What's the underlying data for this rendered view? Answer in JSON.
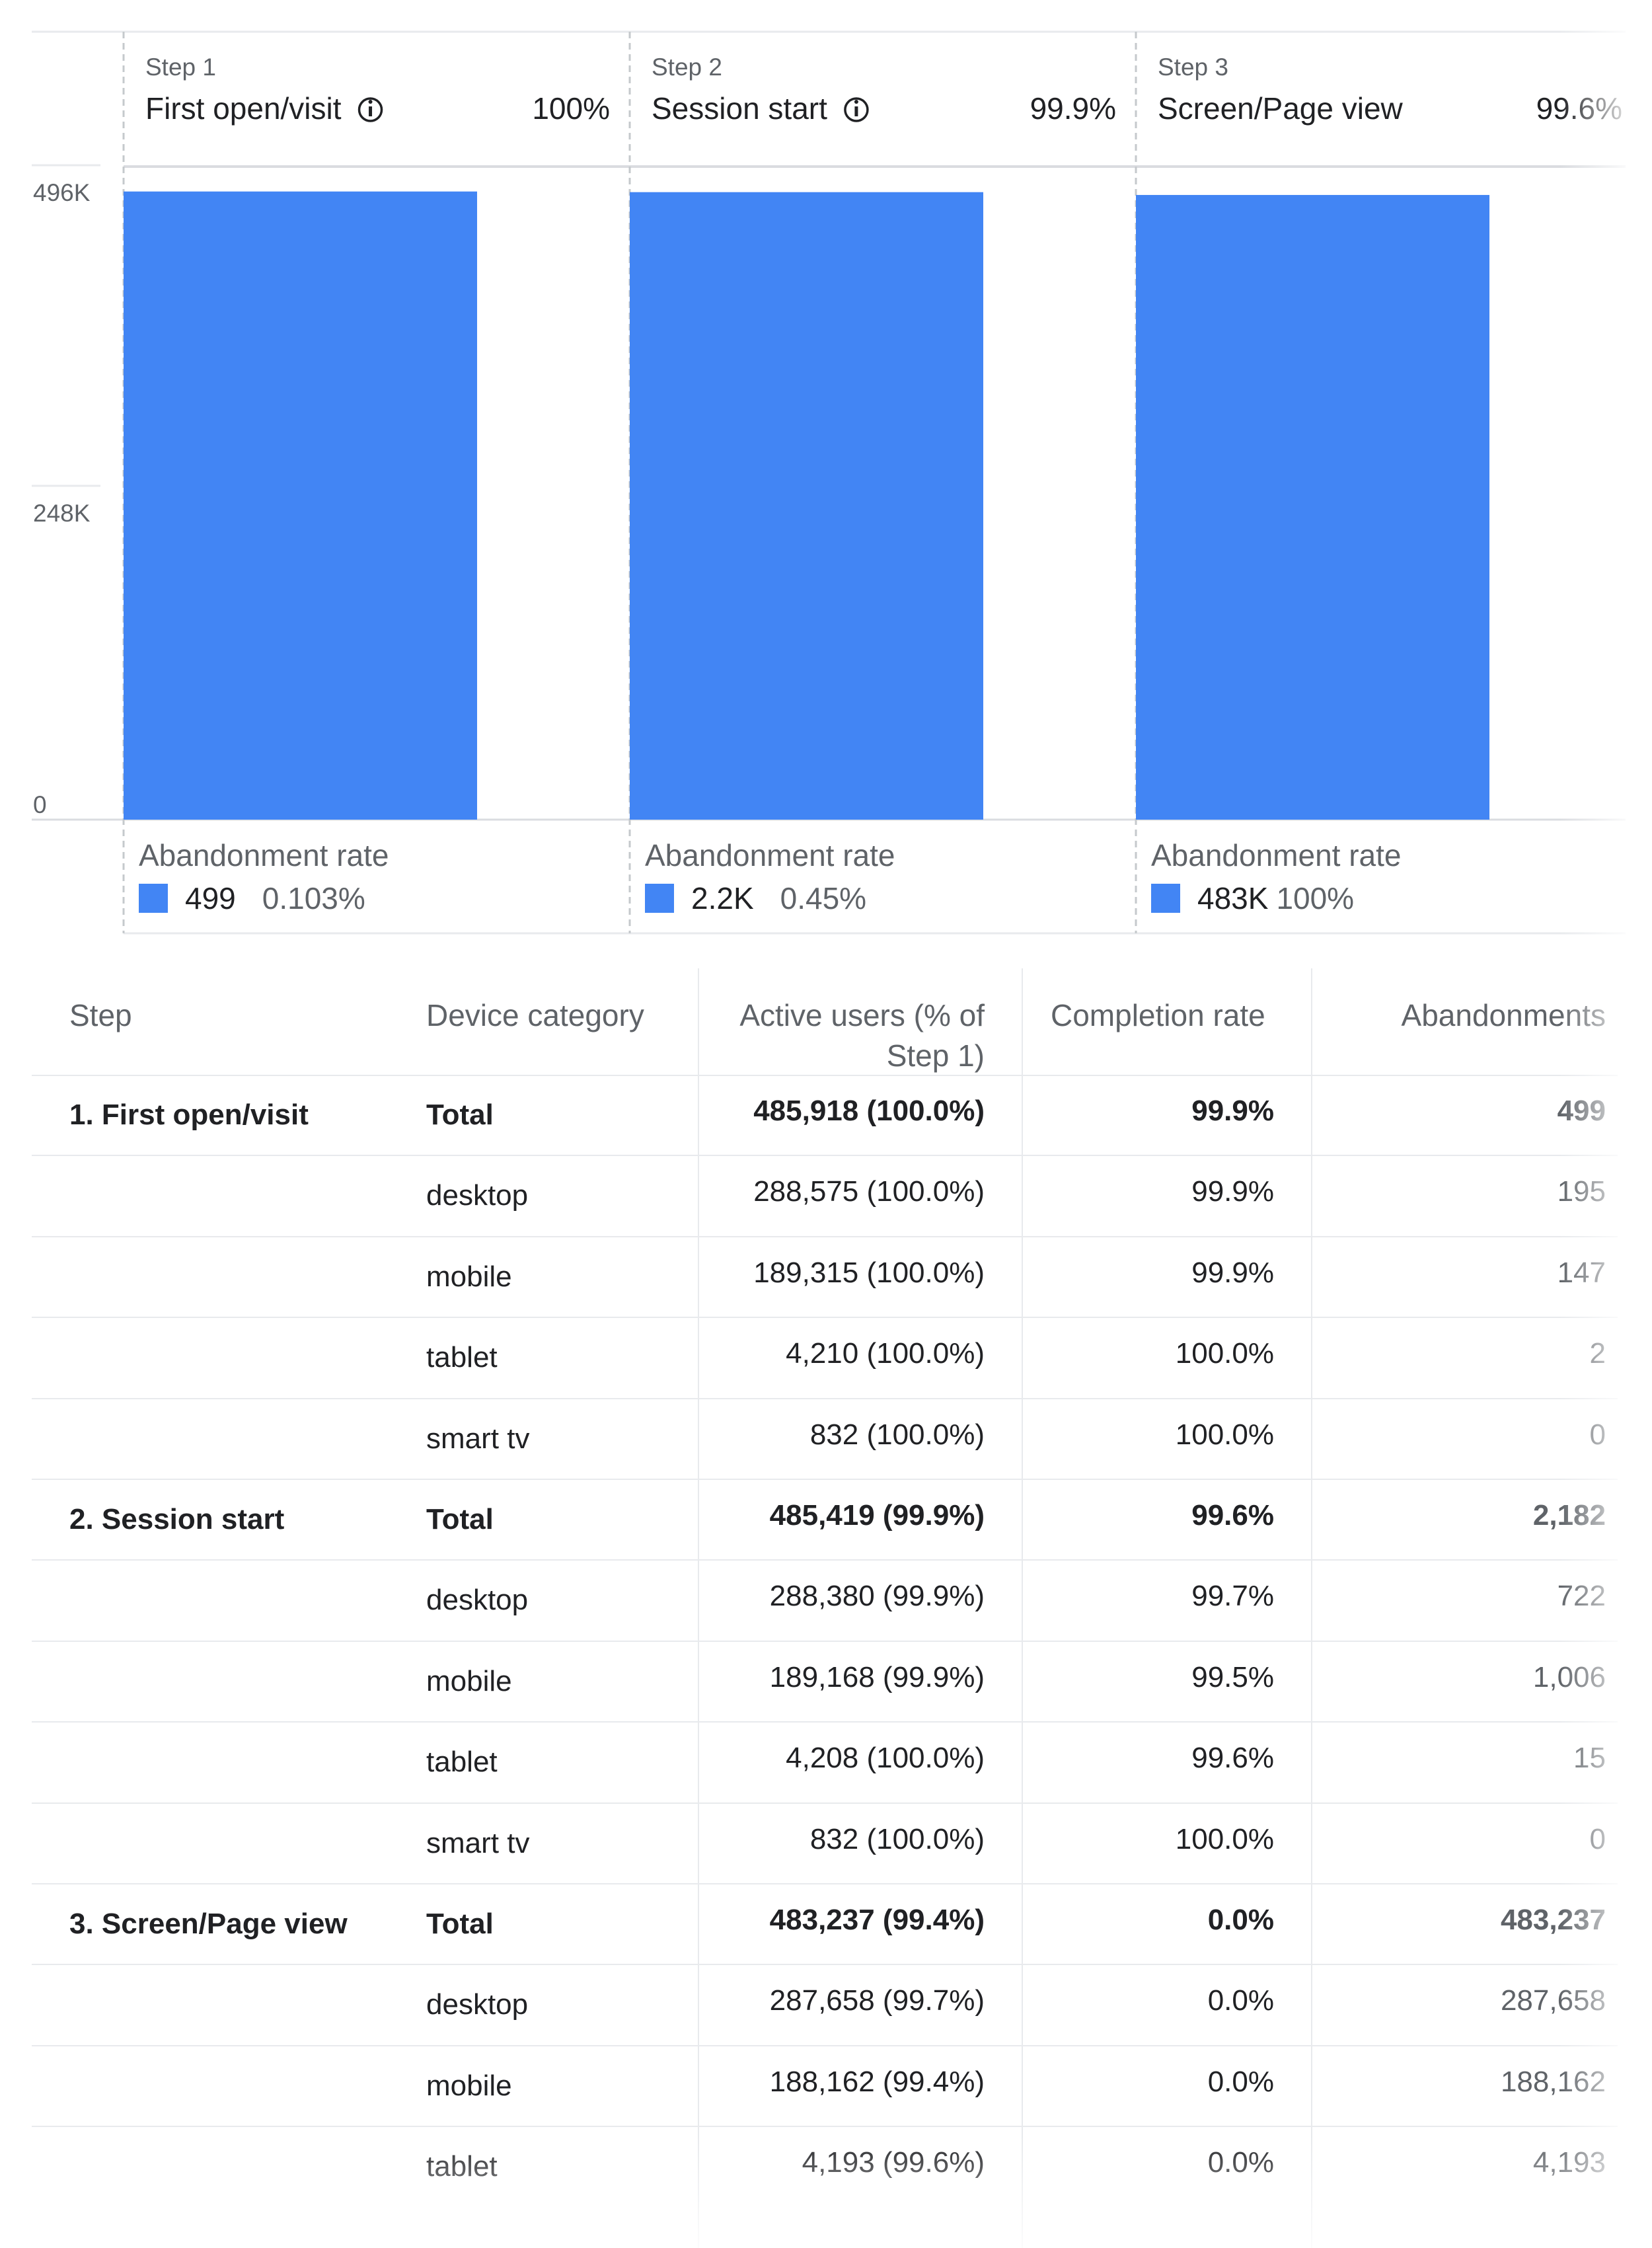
{
  "funnel": {
    "steps": [
      {
        "step_label": "Step 1",
        "name": "First open/visit",
        "has_info": true,
        "pct": "100%",
        "abandonment_title": "Abandonment rate",
        "abandonment_count": "499",
        "abandonment_rate": "0.103%"
      },
      {
        "step_label": "Step 2",
        "name": "Session start",
        "has_info": true,
        "pct": "99.9%",
        "abandonment_title": "Abandonment rate",
        "abandonment_count": "2.2K",
        "abandonment_rate": "0.45%"
      },
      {
        "step_label": "Step 3",
        "name": "Screen/Page view",
        "has_info": false,
        "pct": "99.6%",
        "abandonment_title": "Abandonment rate",
        "abandonment_count": "483K",
        "abandonment_rate": "100%"
      }
    ],
    "info_icon": "info-circle-icon",
    "bar_color": "#4285f4"
  },
  "chart_data": {
    "type": "bar",
    "categories": [
      "First open/visit",
      "Session start",
      "Screen/Page view"
    ],
    "values": [
      485918,
      485419,
      483237
    ],
    "y_ticks": [
      "0",
      "248K",
      "496K"
    ],
    "ylim": [
      0,
      496000
    ],
    "grid": true
  },
  "table": {
    "headers": {
      "step": "Step",
      "device": "Device category",
      "active_users_line1": "Active users (% of",
      "active_users_line2": "Step 1)",
      "completion": "Completion rate",
      "abandonments": "Abandonments"
    },
    "rows": [
      {
        "step": "1. First open/visit",
        "device": "Total",
        "active": "485,918 (100.0%)",
        "completion": "99.9%",
        "abandon": "499",
        "total": true
      },
      {
        "step": "",
        "device": "desktop",
        "active": "288,575 (100.0%)",
        "completion": "99.9%",
        "abandon": "195",
        "total": false
      },
      {
        "step": "",
        "device": "mobile",
        "active": "189,315 (100.0%)",
        "completion": "99.9%",
        "abandon": "147",
        "total": false
      },
      {
        "step": "",
        "device": "tablet",
        "active": "4,210 (100.0%)",
        "completion": "100.0%",
        "abandon": "2",
        "total": false
      },
      {
        "step": "",
        "device": "smart tv",
        "active": "832 (100.0%)",
        "completion": "100.0%",
        "abandon": "0",
        "total": false
      },
      {
        "step": "2. Session start",
        "device": "Total",
        "active": "485,419 (99.9%)",
        "completion": "99.6%",
        "abandon": "2,182",
        "total": true
      },
      {
        "step": "",
        "device": "desktop",
        "active": "288,380 (99.9%)",
        "completion": "99.7%",
        "abandon": "722",
        "total": false
      },
      {
        "step": "",
        "device": "mobile",
        "active": "189,168 (99.9%)",
        "completion": "99.5%",
        "abandon": "1,006",
        "total": false
      },
      {
        "step": "",
        "device": "tablet",
        "active": "4,208 (100.0%)",
        "completion": "99.6%",
        "abandon": "15",
        "total": false
      },
      {
        "step": "",
        "device": "smart tv",
        "active": "832 (100.0%)",
        "completion": "100.0%",
        "abandon": "0",
        "total": false
      },
      {
        "step": "3. Screen/Page view",
        "device": "Total",
        "active": "483,237 (99.4%)",
        "completion": "0.0%",
        "abandon": "483,237",
        "total": true
      },
      {
        "step": "",
        "device": "desktop",
        "active": "287,658 (99.7%)",
        "completion": "0.0%",
        "abandon": "287,658",
        "total": false
      },
      {
        "step": "",
        "device": "mobile",
        "active": "188,162 (99.4%)",
        "completion": "0.0%",
        "abandon": "188,162",
        "total": false
      },
      {
        "step": "",
        "device": "tablet",
        "active": "4,193 (99.6%)",
        "completion": "0.0%",
        "abandon": "4,193",
        "total": false
      }
    ]
  }
}
